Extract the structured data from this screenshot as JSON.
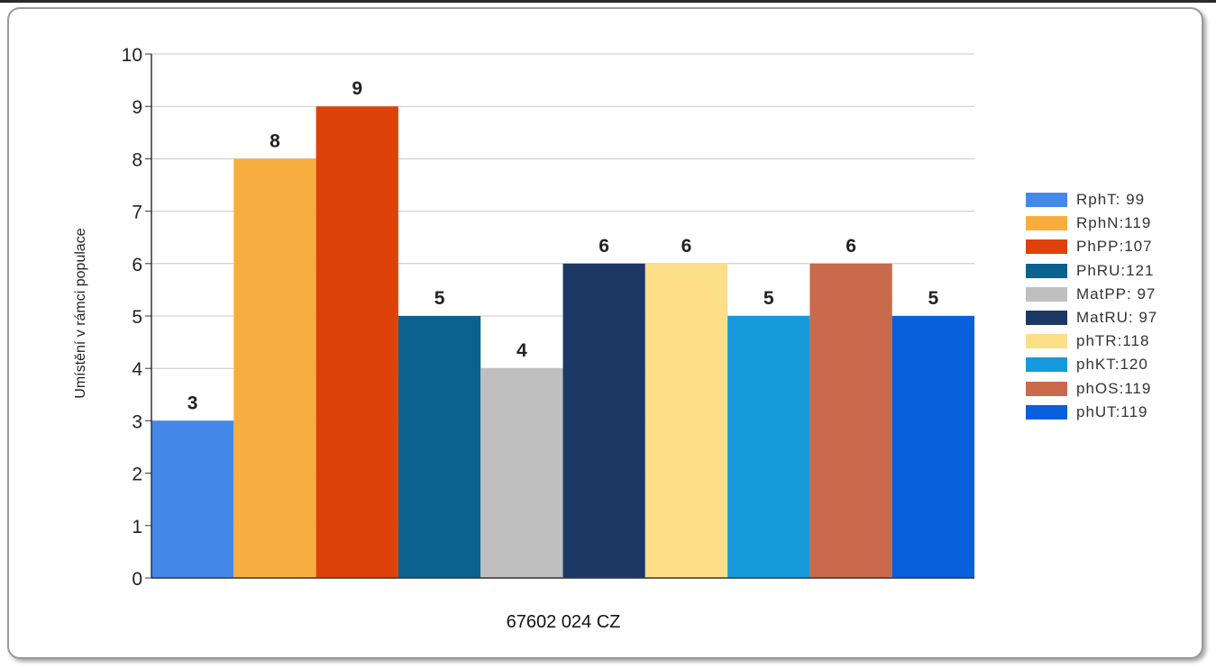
{
  "chart_data": {
    "type": "bar",
    "title": "",
    "xlabel": "67602 024 CZ",
    "ylabel": "Umístění v rámci populace",
    "ylim": [
      0,
      10
    ],
    "yticks": [
      "0",
      "1",
      "2",
      "3",
      "4",
      "5",
      "6",
      "7",
      "8",
      "9",
      "10"
    ],
    "grid": true,
    "legend_position": "right",
    "series": [
      {
        "name": "RphT: 99",
        "value": 3,
        "color": "#4489ea"
      },
      {
        "name": "RphN:119",
        "value": 8,
        "color": "#f8ae3e"
      },
      {
        "name": "PhPP:107",
        "value": 9,
        "color": "#df4208"
      },
      {
        "name": "PhRU:121",
        "value": 5,
        "color": "#0c628f"
      },
      {
        "name": "MatPP: 97",
        "value": 4,
        "color": "#bfbfbf"
      },
      {
        "name": "MatRU: 97",
        "value": 6,
        "color": "#1c3864"
      },
      {
        "name": "phTR:118",
        "value": 6,
        "color": "#fddf88"
      },
      {
        "name": "phKT:120",
        "value": 5,
        "color": "#169adb"
      },
      {
        "name": "phOS:119",
        "value": 6,
        "color": "#c86a4b"
      },
      {
        "name": "phUT:119",
        "value": 5,
        "color": "#0860dc"
      }
    ]
  }
}
